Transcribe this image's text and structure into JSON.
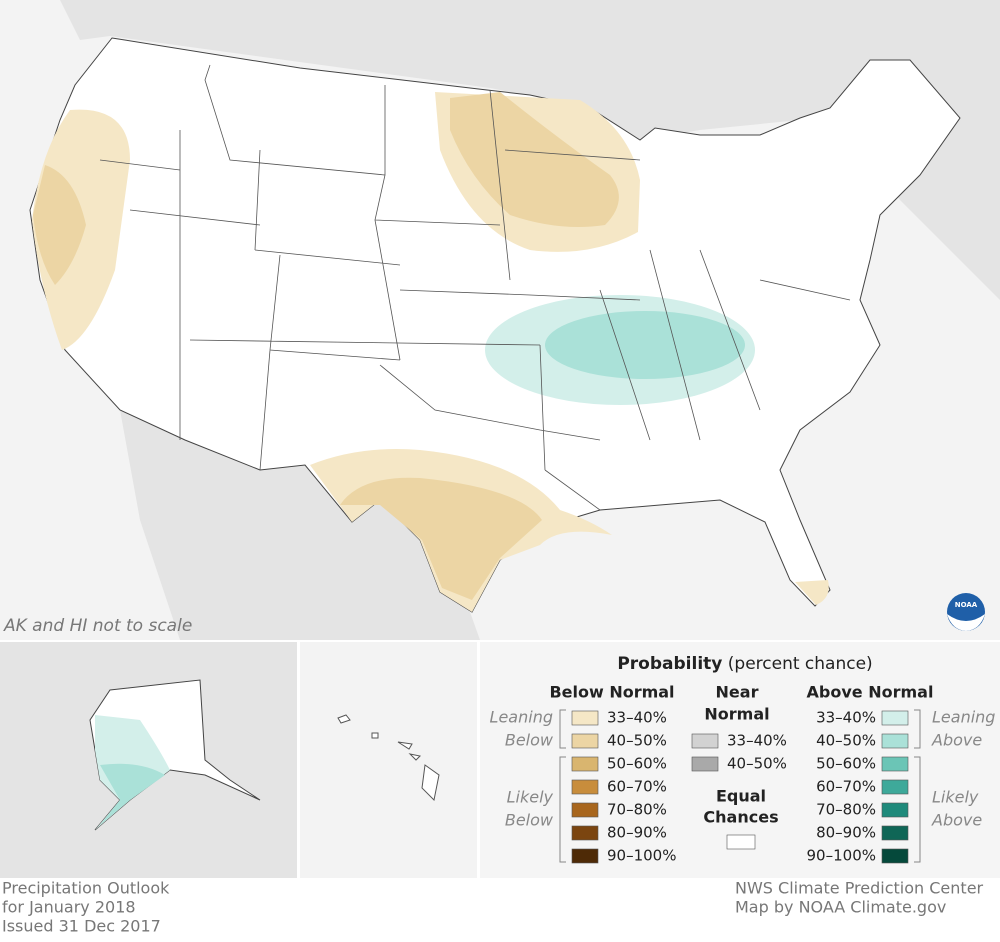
{
  "map": {
    "note": "AK and HI not to scale",
    "logo": "NOAA",
    "land_color": "#ffffff",
    "regions": [
      {
        "category": "below",
        "level": 0,
        "area": "west-coast"
      },
      {
        "category": "below",
        "level": 1,
        "area": "west-coast"
      },
      {
        "category": "below",
        "level": 0,
        "area": "north-central"
      },
      {
        "category": "below",
        "level": 1,
        "area": "north-central"
      },
      {
        "category": "below",
        "level": 0,
        "area": "texas"
      },
      {
        "category": "below",
        "level": 1,
        "area": "texas"
      },
      {
        "category": "below",
        "level": 0,
        "area": "florida"
      },
      {
        "category": "above",
        "level": 0,
        "area": "ohio-valley"
      },
      {
        "category": "above",
        "level": 1,
        "area": "ohio-valley"
      },
      {
        "category": "above",
        "level": 0,
        "area": "alaska"
      },
      {
        "category": "above",
        "level": 1,
        "area": "alaska"
      }
    ]
  },
  "legend": {
    "title": "Probability",
    "subtitle": "(percent chance)",
    "below": {
      "heading": [
        "Below Normal"
      ],
      "leaning": [
        "Leaning",
        "Below"
      ],
      "likely": [
        "Likely",
        "Below"
      ],
      "items": [
        {
          "label": "33–40%",
          "color": "#f5e7c6"
        },
        {
          "label": "40–50%",
          "color": "#ecd5a4"
        },
        {
          "label": "50–60%",
          "color": "#d9b56f"
        },
        {
          "label": "60–70%",
          "color": "#c88d3c"
        },
        {
          "label": "70–80%",
          "color": "#a8661d"
        },
        {
          "label": "80–90%",
          "color": "#7b4510"
        },
        {
          "label": "90–100%",
          "color": "#4e2a06"
        }
      ]
    },
    "near": {
      "heading": [
        "Near",
        "Normal"
      ],
      "items": [
        {
          "label": "33–40%",
          "color": "#d2d2d2"
        },
        {
          "label": "40–50%",
          "color": "#a9a9a9"
        }
      ],
      "equal": [
        "Equal",
        "Chances"
      ],
      "equal_color": "#ffffff"
    },
    "above": {
      "heading": [
        "Above Normal"
      ],
      "leaning": [
        "Leaning",
        "Above"
      ],
      "likely": [
        "Likely",
        "Above"
      ],
      "items": [
        {
          "label": "33–40%",
          "color": "#d3efea"
        },
        {
          "label": "40–50%",
          "color": "#aae1d8"
        },
        {
          "label": "50–60%",
          "color": "#6bc5b6"
        },
        {
          "label": "60–70%",
          "color": "#3ea99a"
        },
        {
          "label": "70–80%",
          "color": "#1f8a7b"
        },
        {
          "label": "80–90%",
          "color": "#0f6656"
        },
        {
          "label": "90–100%",
          "color": "#05493b"
        }
      ]
    }
  },
  "footer": {
    "left": [
      "Precipitation Outlook",
      "for January 2018",
      "Issued 31 Dec 2017"
    ],
    "right": [
      "NWS Climate Prediction Center",
      "Map by NOAA Climate.gov"
    ]
  }
}
